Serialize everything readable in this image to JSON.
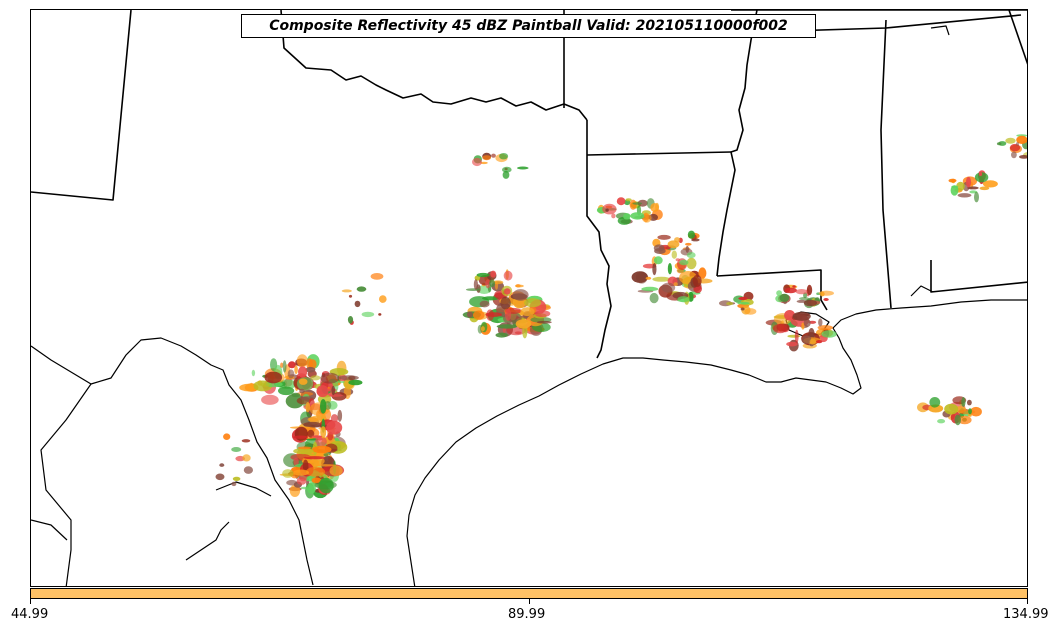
{
  "map": {
    "title": "Composite Reflectivity 45 dBZ Paintball Valid: 202105110000f002",
    "paintball_colors": [
      "#d62728",
      "#ff7f0e",
      "#2ca02c",
      "#8c564b",
      "#bcbd22",
      "#ff9f1c",
      "#e84a4a",
      "#5fd35f",
      "#7f3b2e",
      "#f5a623",
      "#9a2a1a",
      "#4b8f3b"
    ]
  },
  "colorbar": {
    "color": "#ffc266",
    "ticks": [
      "44.99",
      "89.99",
      "134.99"
    ]
  }
}
